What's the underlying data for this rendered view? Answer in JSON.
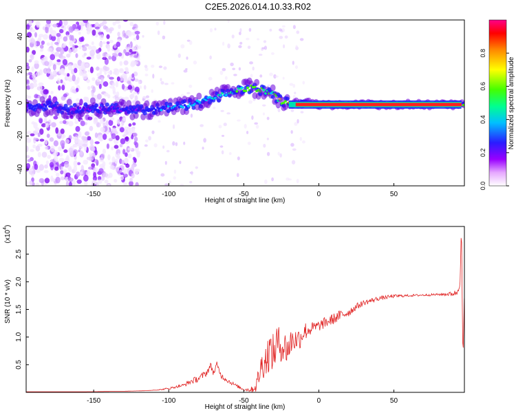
{
  "title": "C2E5.2026.014.10.33.R02",
  "chart_data": [
    {
      "type": "heatmap",
      "xlabel": "Height of straight line (km)",
      "ylabel": "Frequency (Hz)",
      "xlim": [
        -195,
        97
      ],
      "ylim": [
        -50,
        50
      ],
      "xticks": [
        -150,
        -100,
        -50,
        0,
        50
      ],
      "yticks": [
        -40,
        -20,
        0,
        20,
        40
      ],
      "ridge": {
        "x": [
          -195,
          -180,
          -165,
          -150,
          -130,
          -115,
          -100,
          -85,
          -70,
          -60,
          -52,
          -45,
          -38,
          -30,
          -25,
          -20,
          -10,
          0,
          10,
          20,
          40,
          60,
          80,
          95
        ],
        "freq": [
          -3,
          -2,
          -4,
          -3,
          -4,
          -4,
          -3,
          -1,
          3,
          6,
          8,
          9,
          8,
          5,
          1,
          0,
          0,
          -1,
          -1,
          -1,
          -1,
          -1,
          -1,
          -1
        ],
        "amplitude": [
          0.3,
          0.35,
          0.3,
          0.3,
          0.3,
          0.35,
          0.4,
          0.45,
          0.5,
          0.55,
          0.6,
          0.75,
          0.7,
          0.6,
          0.7,
          0.85,
          0.9,
          0.9,
          0.95,
          1.0,
          1.0,
          1.0,
          1.0,
          0.9
        ]
      }
    },
    {
      "type": "colorbar",
      "label": "Normalized spectral amplitude",
      "range": [
        0,
        1
      ],
      "ticks": [
        "0.0",
        "0.2",
        "0.4",
        "0.6",
        "0.8"
      ],
      "colors": [
        "#ffffff",
        "#e090ff",
        "#9000ff",
        "#2020ff",
        "#00c8ff",
        "#00ff80",
        "#40ff00",
        "#ffff00",
        "#ff8000",
        "#ff0000",
        "#ff0080"
      ]
    },
    {
      "type": "line",
      "xlabel": "Height of straight line (km)",
      "ylabel": "SNR (10 * v/v)",
      "scale_label": "(x10",
      "scale_exp": "4",
      "scale_close": ")",
      "xlim": [
        -195,
        97
      ],
      "ylim": [
        0,
        3
      ],
      "xticks": [
        -150,
        -100,
        -50,
        0,
        50
      ],
      "yticks": [
        "0.5",
        "1.0",
        "1.5",
        "2.0",
        "2.5"
      ],
      "series": [
        {
          "name": "SNR",
          "color": "#e02020",
          "x": [
            -195,
            -160,
            -130,
            -115,
            -105,
            -100,
            -95,
            -90,
            -85,
            -80,
            -75,
            -72,
            -70,
            -68,
            -65,
            -60,
            -55,
            -50,
            -45,
            -42,
            -40,
            -38,
            -35,
            -33,
            -30,
            -28,
            -25,
            -22,
            -20,
            -18,
            -15,
            -12,
            -10,
            -5,
            0,
            5,
            10,
            15,
            20,
            25,
            30,
            40,
            50,
            60,
            70,
            80,
            88,
            92,
            94,
            95,
            96,
            97
          ],
          "y": [
            0.01,
            0.01,
            0.02,
            0.03,
            0.05,
            0.07,
            0.1,
            0.13,
            0.2,
            0.25,
            0.35,
            0.48,
            0.35,
            0.5,
            0.3,
            0.2,
            0.12,
            0.05,
            0.05,
            0.1,
            0.3,
            0.5,
            0.6,
            0.75,
            0.7,
            0.9,
            0.85,
            0.8,
            0.8,
            0.95,
            0.95,
            1.0,
            1.1,
            1.15,
            1.2,
            1.27,
            1.33,
            1.4,
            1.45,
            1.55,
            1.62,
            1.7,
            1.74,
            1.75,
            1.76,
            1.77,
            1.78,
            1.8,
            2.0,
            2.9,
            0.5,
            1.8
          ],
          "noise": [
            0,
            0,
            0,
            0,
            0.01,
            0.02,
            0.02,
            0.03,
            0.05,
            0.06,
            0.06,
            0.06,
            0.06,
            0.06,
            0.05,
            0.04,
            0.03,
            0.02,
            0.05,
            0.1,
            0.2,
            0.25,
            0.35,
            0.35,
            0.35,
            0.35,
            0.3,
            0.3,
            0.3,
            0.25,
            0.2,
            0.2,
            0.18,
            0.12,
            0.1,
            0.1,
            0.1,
            0.1,
            0.08,
            0.06,
            0.05,
            0.04,
            0.03,
            0.02,
            0.02,
            0.02,
            0.04,
            0.06,
            0.1,
            0.2,
            0.3,
            0.05
          ]
        }
      ]
    }
  ]
}
